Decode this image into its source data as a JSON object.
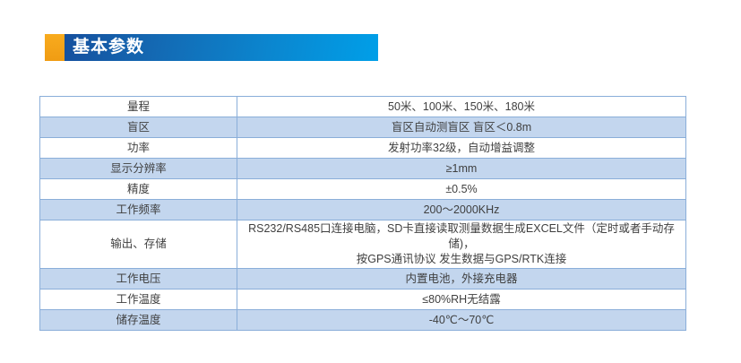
{
  "header": {
    "title": "基本参数",
    "accent_color": "#f6a01d",
    "gradient_start": "#15509e",
    "gradient_end": "#009fe8",
    "text_color": "#ffffff"
  },
  "table": {
    "border_color": "#8aaed9",
    "alt_row_color": "#c3d6ee",
    "text_color": "#3f3f3f",
    "rows": [
      {
        "label": "量程",
        "value": "50米、100米、150米、180米"
      },
      {
        "label": "盲区",
        "value": "盲区自动测盲区 盲区＜0.8m"
      },
      {
        "label": "功率",
        "value": "发射功率32级，自动增益调整"
      },
      {
        "label": "显示分辨率",
        "value": "≥1mm"
      },
      {
        "label": "精度",
        "value": "±0.5%"
      },
      {
        "label": "工作频率",
        "value": "200～2000KHz"
      },
      {
        "label": "输出、存储",
        "value": "RS232/RS485口连接电脑，SD卡直接读取测量数据生成EXCEL文件（定时或者手动存储)，\n按GPS通讯协议 发生数据与GPS/RTK连接"
      },
      {
        "label": "工作电压",
        "value": "内置电池，外接充电器"
      },
      {
        "label": "工作温度",
        "value": "≤80%RH无结露"
      },
      {
        "label": "储存温度",
        "value": "-40℃～70℃"
      }
    ]
  }
}
